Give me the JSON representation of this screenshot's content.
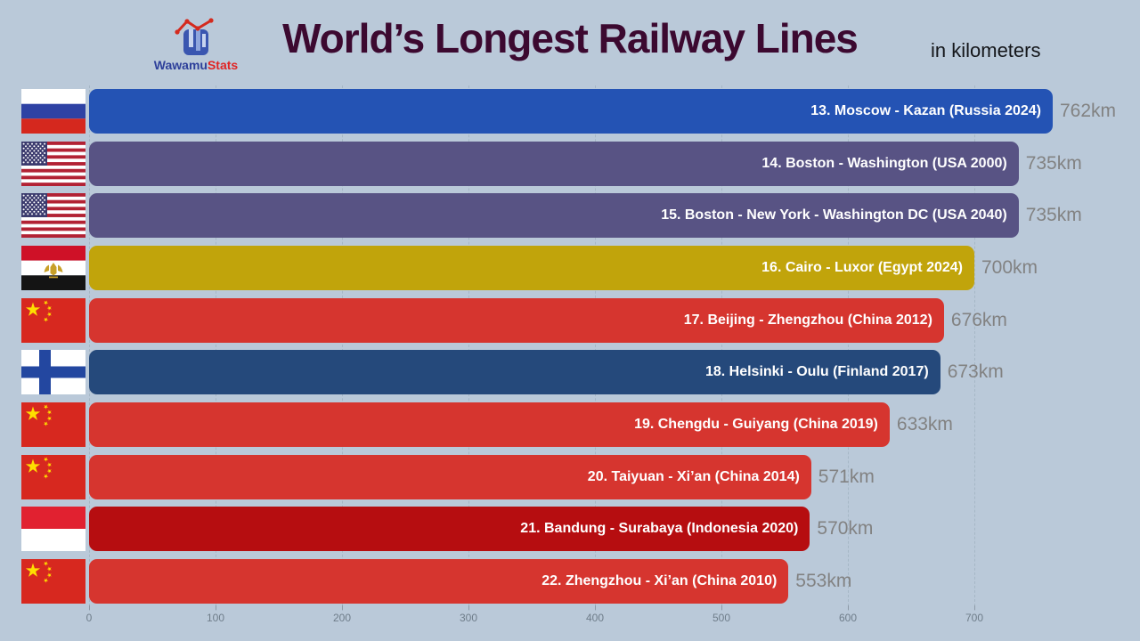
{
  "header": {
    "title": "World’s Longest Railway Lines",
    "subtitle": "in kilometers",
    "logo": {
      "brand_part_blue": "Wawamu",
      "brand_part_red": "Stats"
    }
  },
  "colors": {
    "background": "#bac9d9",
    "title_text": "#3c0930",
    "value_text": "#828282",
    "bar_label_text": "#ffffff",
    "gridline": "#a6b7c6"
  },
  "chart_data": {
    "type": "bar",
    "orientation": "horizontal",
    "title": "World’s Longest Railway Lines",
    "subtitle": "in kilometers",
    "unit": "km",
    "xlim": [
      0,
      800
    ],
    "x_ticks": [
      0,
      100,
      200,
      300,
      400,
      500,
      600,
      700
    ],
    "grid": "vertical-dashed",
    "entries": [
      {
        "rank": 13,
        "label": "13. Moscow - Kazan (Russia 2024)",
        "value": 762,
        "value_label": "762km",
        "flag": "russia-flag-icon",
        "country": "russia",
        "color": "#2453b4"
      },
      {
        "rank": 14,
        "label": "14. Boston - Washington (USA 2000)",
        "value": 735,
        "value_label": "735km",
        "flag": "usa-flag-icon",
        "country": "usa",
        "color": "#585384"
      },
      {
        "rank": 15,
        "label": "15. Boston - New York - Washington DC (USA 2040)",
        "value": 735,
        "value_label": "735km",
        "flag": "usa-flag-icon",
        "country": "usa",
        "color": "#585384"
      },
      {
        "rank": 16,
        "label": "16. Cairo - Luxor (Egypt 2024)",
        "value": 700,
        "value_label": "700km",
        "flag": "egypt-flag-icon",
        "country": "egypt",
        "color": "#c1a40b"
      },
      {
        "rank": 17,
        "label": "17. Beijing - Zhengzhou (China 2012)",
        "value": 676,
        "value_label": "676km",
        "flag": "china-flag-icon",
        "country": "china",
        "color": "#d6352f"
      },
      {
        "rank": 18,
        "label": "18. Helsinki - Oulu (Finland 2017)",
        "value": 673,
        "value_label": "673km",
        "flag": "finland-flag-icon",
        "country": "finland",
        "color": "#25497b"
      },
      {
        "rank": 19,
        "label": "19. Chengdu - Guiyang (China 2019)",
        "value": 633,
        "value_label": "633km",
        "flag": "china-flag-icon",
        "country": "china",
        "color": "#d6352f"
      },
      {
        "rank": 20,
        "label": "20. Taiyuan - Xi’an (China 2014)",
        "value": 571,
        "value_label": "571km",
        "flag": "china-flag-icon",
        "country": "china",
        "color": "#d6352f"
      },
      {
        "rank": 21,
        "label": "21. Bandung - Surabaya (Indonesia 2020)",
        "value": 570,
        "value_label": "570km",
        "flag": "indonesia-flag-icon",
        "country": "indonesia",
        "color": "#b60d10"
      },
      {
        "rank": 22,
        "label": "22. Zhengzhou - Xi’an (China 2010)",
        "value": 553,
        "value_label": "553km",
        "flag": "china-flag-icon",
        "country": "china",
        "color": "#d6352f"
      }
    ]
  }
}
